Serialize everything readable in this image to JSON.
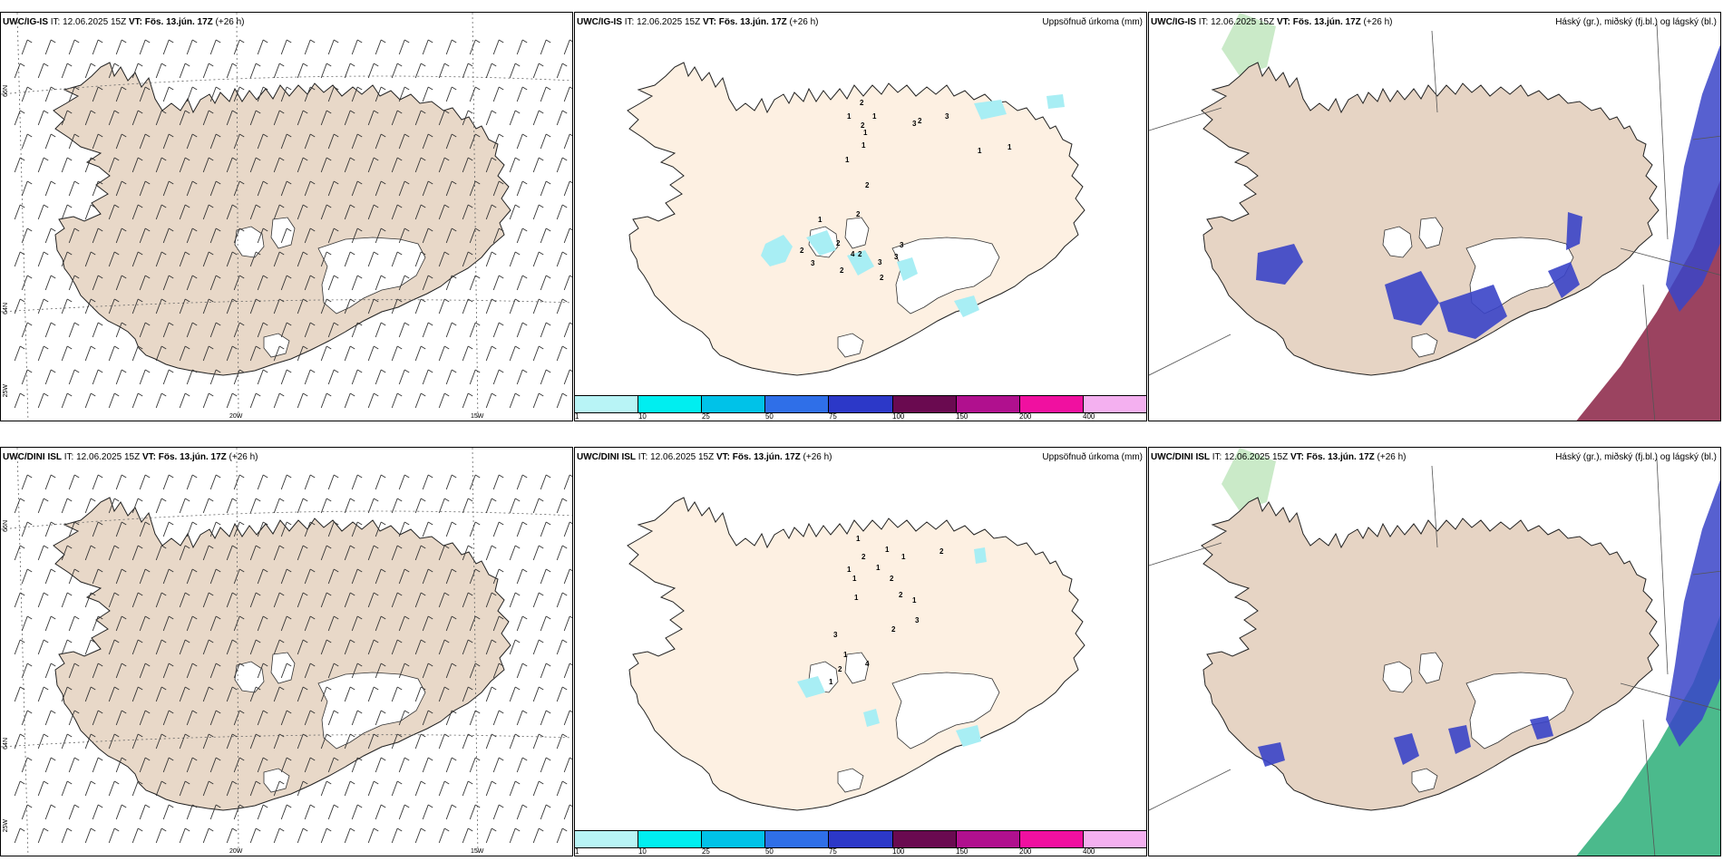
{
  "panels": [
    {
      "id": "p1",
      "title_src": "UWC/IG-IS",
      "title_it": " IT: 12.06.2025 15Z ",
      "title_vt": "VT: Fös. 13.jún. 17Z",
      "title_lead": " (+26 h)",
      "right_title": "",
      "type": "wind"
    },
    {
      "id": "p2",
      "title_src": "UWC/IG-IS",
      "title_it": " IT: 12.06.2025 15Z ",
      "title_vt": "VT: Fös. 13.jún. 17Z",
      "title_lead": " (+26 h)",
      "right_title": "Uppsöfnuð úrkoma (mm)",
      "type": "precip"
    },
    {
      "id": "p3",
      "title_src": "UWC/IG-IS",
      "title_it": " IT: 12.06.2025 15Z ",
      "title_vt": "VT: Fös. 13.jún. 17Z",
      "title_lead": " (+26 h)",
      "right_title": "Háský (gr.), miðský (fj.bl.) og lágský (bl.)",
      "type": "cloud"
    },
    {
      "id": "p4",
      "title_src": "UWC/DINI ISL",
      "title_it": " IT: 12.06.2025 15Z ",
      "title_vt": "VT: Fös. 13.jún. 17Z",
      "title_lead": " (+26 h)",
      "right_title": "",
      "type": "wind"
    },
    {
      "id": "p5",
      "title_src": "UWC/DINI ISL",
      "title_it": " IT: 12.06.2025 15Z ",
      "title_vt": "VT: Fös. 13.jún. 17Z",
      "title_lead": " (+26 h)",
      "right_title": "Uppsöfnuð úrkoma (mm)",
      "type": "precip"
    },
    {
      "id": "p6",
      "title_src": "UWC/DINI ISL",
      "title_it": " IT: 12.06.2025 15Z ",
      "title_vt": "VT: Fös. 13.jún. 17Z",
      "title_lead": " (+26 h)",
      "right_title": "Háský (gr.), miðský (fj.bl.) og lágský (bl.)",
      "type": "cloud"
    }
  ],
  "grid_labels": {
    "lat66": "66N",
    "lat64": "64N",
    "lon25": "25W",
    "lon20": "20W",
    "lon15": "15W"
  },
  "colorbar": {
    "colors": [
      "#b8f4f6",
      "#00eef0",
      "#00c2e8",
      "#2f6fe8",
      "#2c38c8",
      "#6a0a50",
      "#b0108e",
      "#f010a0",
      "#f4b0f0"
    ],
    "labels": [
      "1",
      "10",
      "25",
      "50",
      "75",
      "100",
      "150",
      "200",
      "400"
    ]
  },
  "colors": {
    "land_wind": "#e8d8c8",
    "land_precip": "#fdf0e2",
    "land_cloud": "#e6d4c4",
    "rain_light": "#a8eef4",
    "high_cloud": "#3a44c8",
    "mid_cloud": "#7ab4f0",
    "low_cloud": "#2cae78",
    "low_cloud_dark": "#8a2244"
  },
  "precip_labels_top": [
    "2",
    "1",
    "2",
    "1",
    "1",
    "1",
    "1",
    "3",
    "3",
    "2",
    "1",
    "1",
    "2",
    "2",
    "2",
    "2",
    "4",
    "3",
    "3",
    "3",
    "2",
    "2",
    "3",
    "2",
    "1"
  ],
  "precip_labels_bottom": [
    "1",
    "2",
    "1",
    "1",
    "1",
    "2",
    "1",
    "1",
    "1",
    "2",
    "2",
    "1",
    "3",
    "2",
    "3",
    "1",
    "2",
    "4",
    "1"
  ]
}
